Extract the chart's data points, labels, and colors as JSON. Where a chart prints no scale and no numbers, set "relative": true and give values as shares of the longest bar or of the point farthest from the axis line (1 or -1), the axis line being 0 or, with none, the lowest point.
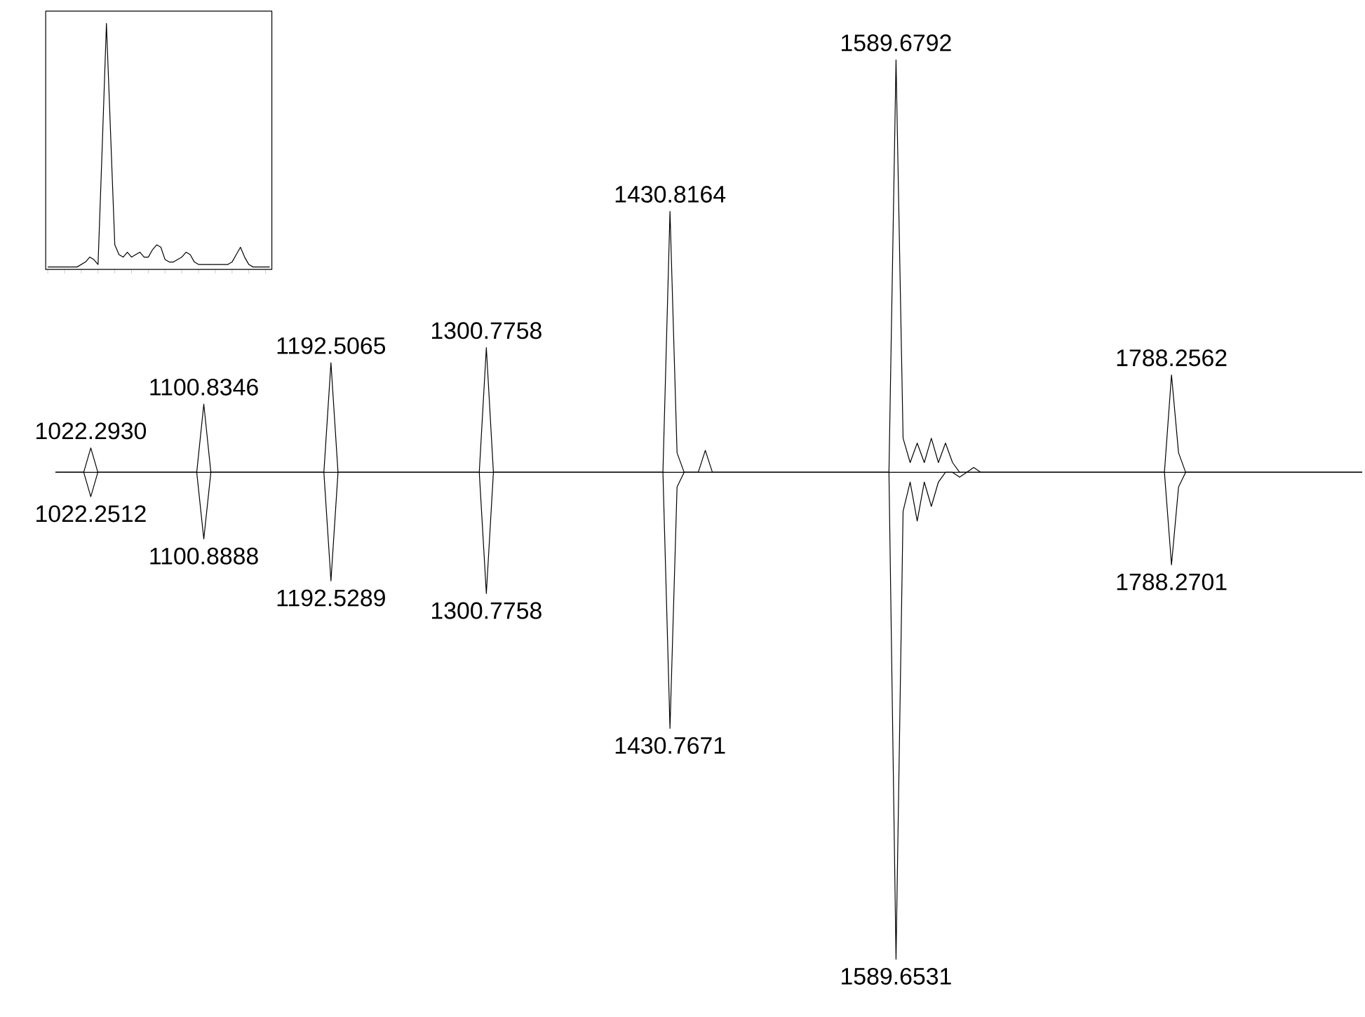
{
  "chart_data": [
    {
      "type": "line",
      "relative": true,
      "categories": [
        null,
        null,
        null,
        null,
        null,
        null,
        null,
        null,
        null,
        null,
        null,
        null,
        null,
        null,
        null,
        null,
        null,
        null,
        null,
        null,
        null,
        null,
        null,
        null,
        null,
        null,
        null,
        null,
        null,
        null,
        null,
        null,
        null,
        null,
        null,
        null,
        null,
        null,
        null,
        null,
        null,
        null,
        null,
        null,
        null,
        null,
        null,
        null,
        null,
        null,
        null,
        null,
        null,
        null,
        null,
        null,
        null,
        null,
        null,
        null,
        null,
        null,
        null,
        null,
        null,
        null,
        null,
        null,
        null,
        null,
        null,
        null,
        null,
        null,
        null,
        null,
        null,
        null,
        null,
        null,
        null,
        null,
        null,
        null,
        null,
        null,
        null,
        null,
        null,
        null,
        null,
        null,
        null,
        null,
        null,
        null,
        null,
        null,
        null,
        null,
        null,
        null,
        null,
        null,
        null,
        null,
        null,
        null,
        null,
        null,
        null,
        null,
        null,
        null,
        null,
        null,
        null,
        null,
        null,
        null,
        null,
        null,
        null,
        null,
        null,
        null,
        null,
        null,
        null,
        null,
        null,
        null,
        null,
        null,
        null,
        null,
        null,
        null,
        null,
        null,
        null,
        null,
        null,
        null,
        null,
        null,
        null,
        null,
        null,
        null,
        null,
        null,
        null,
        null,
        null,
        null,
        null,
        null,
        null,
        null,
        null,
        null,
        null,
        null,
        null,
        null,
        null,
        null,
        null,
        null,
        null,
        null,
        null,
        null,
        null,
        null,
        null,
        null,
        null,
        null,
        null,
        null,
        null,
        null,
        null,
        null
      ],
      "series": [
        {
          "color": "#000000",
          "values": [
            0,
            0,
            0,
            0,
            0,
            0.05,
            0,
            0,
            0,
            0,
            0,
            0,
            0,
            0,
            0,
            0,
            0,
            0,
            0,
            0,
            0,
            0.14,
            0,
            0,
            0,
            0,
            0,
            0,
            0,
            0,
            0,
            0,
            0,
            0,
            0,
            0,
            0,
            0,
            0,
            0.225,
            0,
            0,
            0,
            0,
            0,
            0,
            0,
            0,
            0,
            0,
            0,
            0,
            0,
            0,
            0,
            0,
            0,
            0,
            0,
            0,
            0,
            0.256,
            0,
            0,
            0,
            0,
            0,
            0,
            0,
            0,
            0,
            0,
            0,
            0,
            0,
            0,
            0,
            0,
            0,
            0,
            0,
            0,
            0,
            0,
            0,
            0,
            0,
            0.536,
            0.04,
            0,
            0,
            0,
            0.045,
            0,
            0,
            0,
            0,
            0,
            0,
            0,
            0,
            0,
            0,
            0,
            0,
            0,
            0,
            0,
            0,
            0,
            0,
            0,
            0,
            0,
            0,
            0,
            0,
            0,
            0,
            0.847,
            0.07,
            0.02,
            0.06,
            0.02,
            0.07,
            0.02,
            0.06,
            0.02,
            0,
            0,
            0.01,
            0,
            0,
            0,
            0,
            0,
            0,
            0,
            0,
            0,
            0,
            0,
            0,
            0,
            0,
            0,
            0,
            0,
            0,
            0,
            0,
            0,
            0,
            0,
            0,
            0,
            0,
            0,
            0.2,
            0.04,
            0,
            0,
            0,
            0,
            0,
            0,
            0,
            0,
            0,
            0,
            0,
            0,
            0,
            0,
            0,
            0,
            0,
            0,
            0,
            0,
            0,
            0,
            0,
            0,
            0,
            0
          ]
        },
        {
          "color": "#000000",
          "values": [
            0,
            0,
            0,
            0,
            0,
            -0.05,
            0,
            0,
            0,
            0,
            0,
            0,
            0,
            0,
            0,
            0,
            0,
            0,
            0,
            0,
            0,
            -0.137,
            0,
            0,
            0,
            0,
            0,
            0,
            0,
            0,
            0,
            0,
            0,
            0,
            0,
            0,
            0,
            0,
            0,
            -0.223,
            0,
            0,
            0,
            0,
            0,
            0,
            0,
            0,
            0,
            0,
            0,
            0,
            0,
            0,
            0,
            0,
            0,
            0,
            0,
            0,
            0,
            -0.249,
            0,
            0,
            0,
            0,
            0,
            0,
            0,
            0,
            0,
            0,
            0,
            0,
            0,
            0,
            0,
            0,
            0,
            0,
            0,
            0,
            0,
            0,
            0,
            0,
            0,
            -0.526,
            -0.03,
            0,
            0,
            0,
            0,
            0,
            0,
            0,
            0,
            0,
            0,
            0,
            0,
            0,
            0,
            0,
            0,
            0,
            0,
            0,
            0,
            0,
            0,
            0,
            0,
            0,
            0,
            0,
            0,
            0,
            0,
            -1,
            -0.08,
            -0.02,
            -0.1,
            -0.02,
            -0.07,
            -0.02,
            0,
            0,
            -0.01,
            0,
            0,
            0,
            0,
            0,
            0,
            0,
            0,
            0,
            0,
            0,
            0,
            0,
            0,
            0,
            0,
            0,
            0,
            0,
            0,
            0,
            0,
            0,
            0,
            0,
            0,
            0,
            0,
            0,
            -0.19,
            -0.03,
            0,
            0,
            0,
            0,
            0,
            0,
            0,
            0,
            0,
            0,
            0,
            0,
            0,
            0,
            0,
            0,
            0,
            0,
            0,
            0,
            0,
            0,
            0,
            0,
            0,
            0
          ]
        }
      ],
      "annotations": [
        {
          "text": "1022.2930",
          "y": 0.05
        },
        {
          "text": "1100.8346",
          "y": 0.14
        },
        {
          "text": "1192.5065",
          "y": 0.225
        },
        {
          "text": "1300.7758",
          "y": 0.256
        },
        {
          "text": "1430.8164",
          "y": 0.536
        },
        {
          "text": "1589.6792",
          "y": 0.847
        },
        {
          "text": "1788.2562",
          "y": 0.2
        },
        {
          "text": "1022.2512",
          "y": -0.05
        },
        {
          "text": "1100.8888",
          "y": -0.137
        },
        {
          "text": "1192.5289",
          "y": -0.223
        },
        {
          "text": "1300.7758",
          "y": -0.249
        },
        {
          "text": "1430.7671",
          "y": -0.526
        },
        {
          "text": "1589.6531",
          "y": -1
        },
        {
          "text": "1788.2701",
          "y": -0.19
        }
      ]
    },
    {
      "type": "line",
      "relative": true,
      "categories": [
        null,
        null,
        null,
        null,
        null,
        null,
        null,
        null,
        null,
        null,
        null,
        null,
        null,
        null,
        null,
        null,
        null,
        null,
        null,
        null,
        null,
        null,
        null,
        null,
        null,
        null,
        null,
        null,
        null,
        null,
        null,
        null,
        null,
        null,
        null,
        null,
        null,
        null,
        null,
        null,
        null,
        null,
        null,
        null,
        null,
        null,
        null,
        null,
        null,
        null,
        null,
        null,
        null,
        null
      ],
      "series": [
        {
          "color": "#000000",
          "values": [
            0.01,
            0.01,
            0.01,
            0.01,
            0.01,
            0.01,
            0.01,
            0.01,
            0.02,
            0.03,
            0.05,
            0.04,
            0.02,
            0.5,
            1.0,
            0.55,
            0.1,
            0.06,
            0.05,
            0.07,
            0.05,
            0.06,
            0.07,
            0.05,
            0.05,
            0.08,
            0.1,
            0.09,
            0.04,
            0.03,
            0.03,
            0.04,
            0.05,
            0.07,
            0.06,
            0.03,
            0.02,
            0.02,
            0.02,
            0.02,
            0.02,
            0.02,
            0.02,
            0.02,
            0.03,
            0.06,
            0.09,
            0.05,
            0.02,
            0.01,
            0.01,
            0.01,
            0.01,
            0.01
          ]
        }
      ]
    }
  ]
}
